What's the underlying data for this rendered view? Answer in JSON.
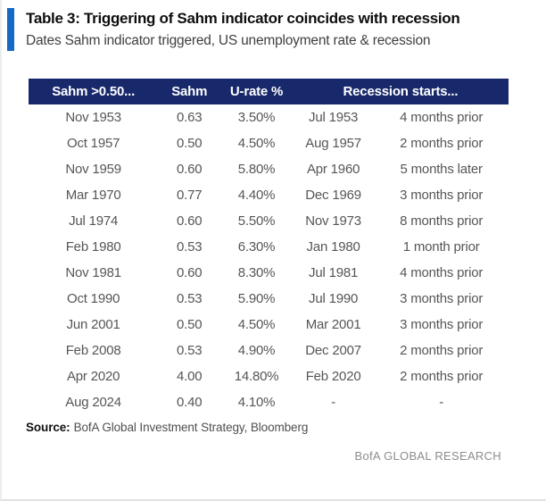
{
  "chart_data": {
    "type": "table",
    "title": "Table 3: Triggering of Sahm indicator coincides with recession",
    "subtitle": "Dates Sahm indicator triggered, US unemployment rate & recession",
    "columns": [
      "Sahm >0.50...",
      "Sahm",
      "U-rate %",
      "Recession starts..."
    ],
    "rows": [
      [
        "Nov 1953",
        "0.63",
        "3.50%",
        "Jul 1953",
        "4 months prior"
      ],
      [
        "Oct 1957",
        "0.50",
        "4.50%",
        "Aug 1957",
        "2 months prior"
      ],
      [
        "Nov 1959",
        "0.60",
        "5.80%",
        "Apr 1960",
        "5 months later"
      ],
      [
        "Mar 1970",
        "0.77",
        "4.40%",
        "Dec 1969",
        "3 months prior"
      ],
      [
        "Jul 1974",
        "0.60",
        "5.50%",
        "Nov 1973",
        "8 months prior"
      ],
      [
        "Feb 1980",
        "0.53",
        "6.30%",
        "Jan 1980",
        "1 month prior"
      ],
      [
        "Nov 1981",
        "0.60",
        "8.30%",
        "Jul 1981",
        "4 months prior"
      ],
      [
        "Oct 1990",
        "0.53",
        "5.90%",
        "Jul 1990",
        "3 months prior"
      ],
      [
        "Jun 2001",
        "0.50",
        "4.50%",
        "Mar 2001",
        "3 months prior"
      ],
      [
        "Feb 2008",
        "0.53",
        "4.90%",
        "Dec 2007",
        "2 months prior"
      ],
      [
        "Apr 2020",
        "4.00",
        "14.80%",
        "Feb 2020",
        "2 months prior"
      ],
      [
        "Aug 2024",
        "0.40",
        "4.10%",
        "-",
        "-"
      ]
    ]
  },
  "footer": {
    "source_label": "Source:",
    "source_text": "BofA Global Investment Strategy, Bloomberg",
    "brand": "BofA GLOBAL RESEARCH"
  },
  "colors": {
    "header_navy": "#17296B",
    "accent_blue": "#1569C7",
    "row_text": "#565656",
    "brand_gray": "#8c8c8c"
  }
}
